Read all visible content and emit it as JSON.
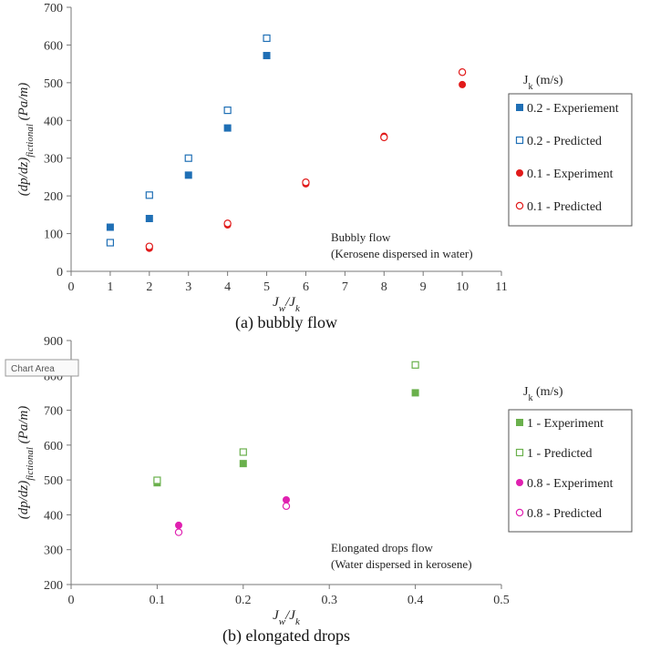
{
  "tooltip": "Chart Area",
  "chart_data": [
    {
      "type": "scatter",
      "caption": "(a) bubbly flow",
      "xlabel": "J_w/J_k",
      "ylabel": "(dp/dz)_fictional (Pa/m)",
      "xlim": [
        0,
        11
      ],
      "ylim": [
        0,
        700
      ],
      "xticks": [
        0,
        1,
        2,
        3,
        4,
        5,
        6,
        7,
        8,
        9,
        10,
        11
      ],
      "yticks": [
        0,
        100,
        200,
        300,
        400,
        500,
        600,
        700
      ],
      "grid": false,
      "annotation": [
        "Bubbly flow",
        "(Kerosene dispersed in water)"
      ],
      "legend_title": "J_k (m/s)",
      "legend_position": "right",
      "series": [
        {
          "name": "0.2 - Experiement",
          "marker": "square-filled",
          "color": "#1f6fb5",
          "x": [
            1,
            2,
            3,
            4,
            5
          ],
          "y": [
            117,
            140,
            255,
            380,
            572
          ]
        },
        {
          "name": "0.2 - Predicted",
          "marker": "square-open",
          "color": "#1f6fb5",
          "x": [
            1,
            2,
            3,
            4,
            5
          ],
          "y": [
            76,
            202,
            300,
            427,
            618
          ]
        },
        {
          "name": "0.1 - Experiment",
          "marker": "circle-filled",
          "color": "#e11a1a",
          "x": [
            2,
            4,
            6,
            8,
            10
          ],
          "y": [
            61,
            123,
            232,
            358,
            495
          ]
        },
        {
          "name": "0.1 - Predicted",
          "marker": "circle-open",
          "color": "#e11a1a",
          "x": [
            2,
            4,
            6,
            8,
            10
          ],
          "y": [
            66,
            127,
            236,
            355,
            528
          ]
        }
      ]
    },
    {
      "type": "scatter",
      "caption": "(b) elongated drops",
      "xlabel": "J_w/J_k",
      "ylabel": "(dp/dz)_fictional (Pa/m)",
      "xlim": [
        0,
        0.5
      ],
      "ylim": [
        200,
        900
      ],
      "xticks": [
        "0",
        "0.1",
        "0.2",
        "0.3",
        "0.4",
        "0.5"
      ],
      "yticks": [
        200,
        300,
        400,
        500,
        600,
        700,
        800,
        900
      ],
      "grid": false,
      "annotation": [
        "Elongated drops flow",
        "(Water dispersed in kerosene)"
      ],
      "legend_title": "J_k (m/s)",
      "legend_position": "right",
      "series": [
        {
          "name": "1 - Experiment",
          "marker": "square-filled",
          "color": "#6ab04c",
          "x": [
            0.1,
            0.2,
            0.4
          ],
          "y": [
            492,
            547,
            750
          ]
        },
        {
          "name": "1 - Predicted",
          "marker": "square-open",
          "color": "#6ab04c",
          "x": [
            0.1,
            0.2,
            0.4
          ],
          "y": [
            499,
            580,
            830
          ]
        },
        {
          "name": "0.8 - Experiment",
          "marker": "circle-filled",
          "color": "#e020b0",
          "x": [
            0.125,
            0.25
          ],
          "y": [
            370,
            443
          ]
        },
        {
          "name": "0.8 - Predicted",
          "marker": "circle-open",
          "color": "#e020b0",
          "x": [
            0.125,
            0.25
          ],
          "y": [
            350,
            425
          ]
        }
      ]
    }
  ]
}
